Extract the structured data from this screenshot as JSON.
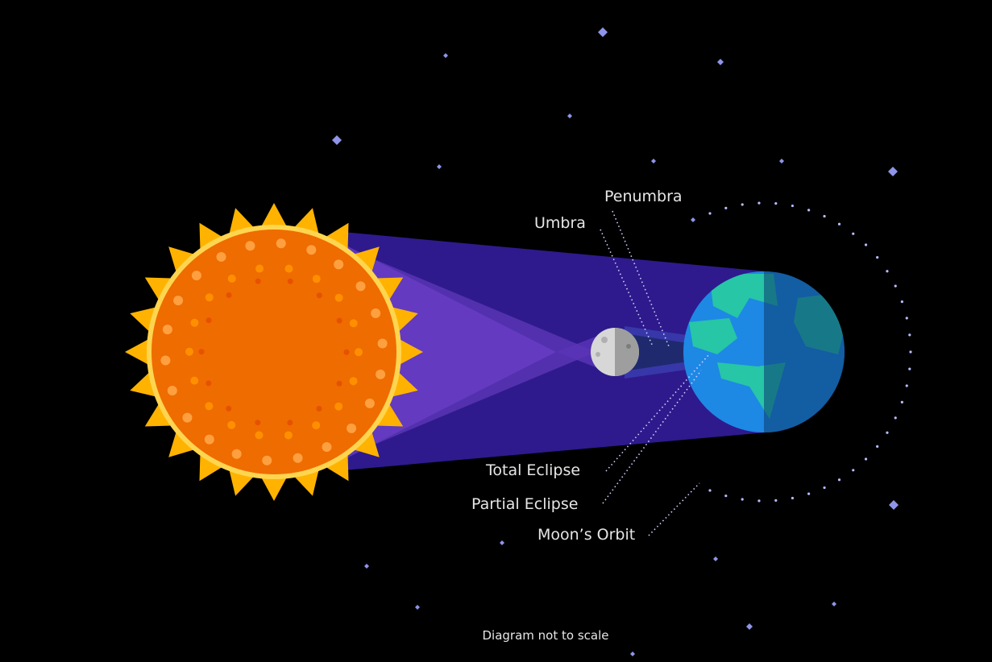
{
  "labels": {
    "penumbra": "Penumbra",
    "umbra": "Umbra",
    "total_eclipse": "Total Eclipse",
    "partial_eclipse": "Partial Eclipse",
    "moons_orbit": "Moon’s Orbit"
  },
  "footnote": "Diagram not to scale"
}
